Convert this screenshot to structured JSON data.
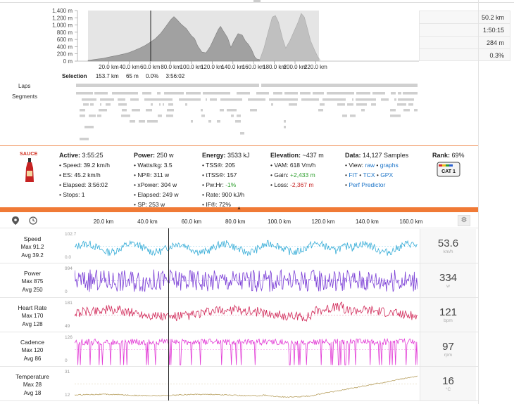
{
  "elevation": {
    "y_ticks": [
      "1,400 m",
      "1,200 m",
      "1,000 m",
      "800 m",
      "600 m",
      "400 m",
      "200 m",
      "0 m"
    ],
    "x_ticks": [
      "20.0 km",
      "40.0 km",
      "60.0 km",
      "80.0 km",
      "100.0 km",
      "120.0 km",
      "140.0 km",
      "160.0 km",
      "180.0 km",
      "200.0 km",
      "220.0 km"
    ],
    "stats": [
      "50.2 km",
      "1:50:15",
      "284 m",
      "0.3%"
    ],
    "selection": {
      "label": "Selection",
      "distance": "153.7 km",
      "gain": "65 m",
      "grade": "0.0%",
      "time": "3:56:02"
    }
  },
  "labels": {
    "laps": "Laps",
    "segments": "Segments"
  },
  "info": {
    "sauce": "SAUCE",
    "active": {
      "title": "Active:",
      "value": "3:55:25",
      "lines": [
        "• Speed: 39.2 km/h",
        "• ES: 45.2 km/h",
        "• Elapsed: 3:56:02",
        "• Stops: 1"
      ]
    },
    "power": {
      "title": "Power:",
      "value": "250 w",
      "lines": [
        "• Watts/kg: 3.5",
        "• NP®: 311 w",
        "• xPower: 304 w",
        "• Elapsed: 249 w",
        "• SP: 253 w"
      ]
    },
    "energy": {
      "title": "Energy:",
      "value": "3533 kJ",
      "lines": [
        "• TSS®: 205",
        "• tTSS®: 157",
        "• Pw:Hr: ",
        "• Rate: 900 kJ/h",
        "• IF®: 72%"
      ],
      "pwhr": "-1%"
    },
    "elevation": {
      "title": "Elevation:",
      "value": "~437 m",
      "vam": "• VAM: 618 Vm/h",
      "gain_label": "• Gain: ",
      "gain": "+2,433 m",
      "loss_label": "• Loss: ",
      "loss": "-2,367 m"
    },
    "data": {
      "title": "Data:",
      "value": "14,127 Samples",
      "view_label": "• View: ",
      "raw": "raw",
      "dot": " • ",
      "graphs": "graphs",
      "fit": "FIT",
      "tcx": "TCX",
      "gpx": "GPX",
      "perf": "Perf Predictor"
    },
    "rank": {
      "title": "Rank:",
      "value": "69%",
      "badge": "CAT 1"
    }
  },
  "distance_ticks": [
    "20.0 km",
    "40.0 km",
    "60.0 km",
    "80.0 km",
    "100.0 km",
    "120.0 km",
    "140.0 km",
    "160.0 km"
  ],
  "streams": [
    {
      "name": "Speed",
      "max": "Max 91.2",
      "avg": "Avg 39.2",
      "ymax": "102.7",
      "ymin": "0.0",
      "value": "53.6",
      "unit": "km/h",
      "color": "#3aaed8"
    },
    {
      "name": "Power",
      "max": "Max 875",
      "avg": "Avg 250",
      "ymax": "994",
      "ymin": "0",
      "value": "334",
      "unit": "w",
      "color": "#7b3fd6"
    },
    {
      "name": "Heart Rate",
      "max": "Max 170",
      "avg": "Avg 128",
      "ymax": "181",
      "ymin": "49",
      "value": "121",
      "unit": "bpm",
      "color": "#d12b5a"
    },
    {
      "name": "Cadence",
      "max": "Max 120",
      "avg": "Avg 86",
      "ymax": "126",
      "ymin": "0",
      "value": "97",
      "unit": "rpm",
      "color": "#e23ad6"
    },
    {
      "name": "Temperature",
      "max": "Max 28",
      "avg": "Avg 18",
      "ymax": "31",
      "ymin": "12",
      "value": "16",
      "unit": "°C",
      "color": "#b8a060"
    }
  ],
  "icons": {
    "pin": "map-pin-icon",
    "clock": "clock-icon",
    "gear": "gear-icon",
    "bottle": "sauce-bottle-icon",
    "badge": "cat1-badge-icon"
  }
}
